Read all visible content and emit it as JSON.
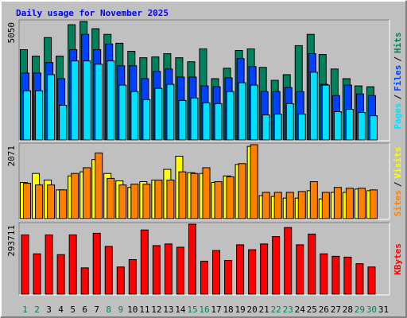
{
  "chart_data": [
    {
      "type": "bar",
      "title": "Daily usage for November 2025",
      "legend_separator": "/",
      "ylim": [
        0,
        5050
      ],
      "yticks": [
        5050
      ],
      "series": [
        {
          "name": "Hits",
          "color": "#00805c",
          "values": [
            3847,
            3573,
            4363,
            3573,
            4912,
            5050,
            4741,
            4500,
            4122,
            3779,
            3504,
            3538,
            3676,
            3504,
            3332,
            3882,
            2611,
            3057,
            3813,
            3882,
            3092,
            2542,
            2783,
            4019,
            4500,
            3641,
            3023,
            2611,
            2302,
            2267,
            null
          ]
        },
        {
          "name": "Files",
          "color": "#0040ff",
          "values": [
            2851,
            2851,
            3298,
            2611,
            3847,
            4500,
            3847,
            4088,
            3160,
            3160,
            2611,
            2920,
            3023,
            2679,
            2679,
            2302,
            2267,
            2645,
            3470,
            3126,
            2061,
            2061,
            2233,
            2061,
            3676,
            2370,
            1889,
            2336,
            1958,
            1889,
            null
          ]
        },
        {
          "name": "Pages",
          "color": "#00e0ff",
          "values": [
            2095,
            2095,
            2783,
            1477,
            3367,
            3367,
            3229,
            3367,
            2336,
            2061,
            1718,
            2199,
            2370,
            1683,
            1786,
            1580,
            1546,
            2061,
            2439,
            2336,
            1065,
            1099,
            1546,
            1099,
            2886,
            2336,
            1202,
            1305,
            1168,
            1031,
            null
          ]
        }
      ]
    },
    {
      "type": "bar",
      "legend_separator": "/",
      "ylim": [
        0,
        2071
      ],
      "yticks": [
        2071
      ],
      "series": [
        {
          "name": "Visits",
          "color": "#ffff00",
          "values": [
            1012,
            1265,
            1081,
            805,
            1196,
            1311,
            1656,
            1265,
            1058,
            874,
            1035,
            1081,
            1380,
            1748,
            1288,
            1265,
            1012,
            1196,
            1518,
            2024,
            644,
            621,
            575,
            575,
            782,
            552,
            736,
            736,
            828,
            782,
            null
          ]
        },
        {
          "name": "Sites",
          "color": "#ff8000",
          "values": [
            989,
            943,
            943,
            805,
            1265,
            1426,
            1840,
            1127,
            943,
            966,
            966,
            1081,
            1081,
            1311,
            1265,
            1426,
            1035,
            1173,
            1541,
            2071,
            736,
            736,
            736,
            759,
            1035,
            736,
            874,
            851,
            851,
            805,
            null
          ]
        }
      ]
    },
    {
      "type": "bar",
      "ylim": [
        0,
        293711
      ],
      "yticks": [
        293711
      ],
      "categories": [
        "1",
        "2",
        "3",
        "4",
        "5",
        "6",
        "7",
        "8",
        "9",
        "10",
        "11",
        "12",
        "13",
        "14",
        "15",
        "16",
        "17",
        "18",
        "19",
        "20",
        "21",
        "22",
        "23",
        "24",
        "25",
        "26",
        "27",
        "28",
        "29",
        "30",
        "31"
      ],
      "category_colors": [
        "#00805c",
        "#00805c",
        "#000000",
        "#000000",
        "#000000",
        "#000000",
        "#000000",
        "#00805c",
        "#00805c",
        "#000000",
        "#000000",
        "#000000",
        "#000000",
        "#000000",
        "#00805c",
        "#00805c",
        "#000000",
        "#000000",
        "#000000",
        "#000000",
        "#000000",
        "#00805c",
        "#00805c",
        "#000000",
        "#000000",
        "#000000",
        "#000000",
        "#000000",
        "#00805c",
        "#00805c",
        "#000000"
      ],
      "series": [
        {
          "name": "KBytes",
          "color": "#ff0000",
          "values": [
            248760,
            169295,
            248760,
            165840,
            248760,
            110560,
            255670,
            200390,
            114015,
            145110,
            269490,
            203845,
            210755,
            196935,
            293711,
            138200,
            183115,
            141655,
            207300,
            186570,
            210755,
            241850,
            279855,
            207300,
            252215,
            169295,
            158930,
            155475,
            127835,
            114015,
            null
          ]
        }
      ]
    }
  ]
}
